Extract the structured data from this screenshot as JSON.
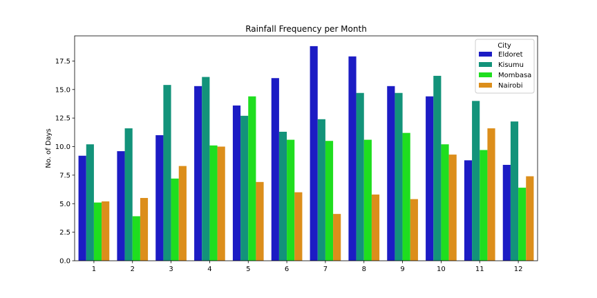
{
  "chart_data": {
    "type": "bar",
    "title": "Rainfall Frequency per Month",
    "xlabel": "",
    "ylabel": "No. of Days",
    "categories": [
      "1",
      "2",
      "3",
      "4",
      "5",
      "6",
      "7",
      "8",
      "9",
      "10",
      "11",
      "12"
    ],
    "ylim": [
      0,
      19.7
    ],
    "yticks": [
      "0.0",
      "2.5",
      "5.0",
      "7.5",
      "10.0",
      "12.5",
      "15.0",
      "17.5"
    ],
    "grid": false,
    "legend": {
      "title": "City",
      "placement": "top-right"
    },
    "series": [
      {
        "name": "Eldoret",
        "color": "#1c1cc4",
        "values": [
          9.2,
          9.6,
          11.0,
          15.3,
          13.6,
          16.0,
          18.8,
          17.9,
          15.3,
          14.4,
          8.8,
          8.4
        ]
      },
      {
        "name": "Kisumu",
        "color": "#13937a",
        "values": [
          10.2,
          11.6,
          15.4,
          16.1,
          12.7,
          11.3,
          12.4,
          14.7,
          14.7,
          16.2,
          14.0,
          12.2
        ]
      },
      {
        "name": "Mombasa",
        "color": "#1fde1f",
        "values": [
          5.1,
          3.9,
          7.2,
          10.1,
          14.4,
          10.6,
          10.5,
          10.6,
          11.2,
          10.2,
          9.7,
          6.4
        ]
      },
      {
        "name": "Nairobi",
        "color": "#dc8e1b",
        "values": [
          5.2,
          5.5,
          8.3,
          10.0,
          6.9,
          6.0,
          4.1,
          5.8,
          5.4,
          9.3,
          11.6,
          7.4
        ]
      }
    ]
  }
}
